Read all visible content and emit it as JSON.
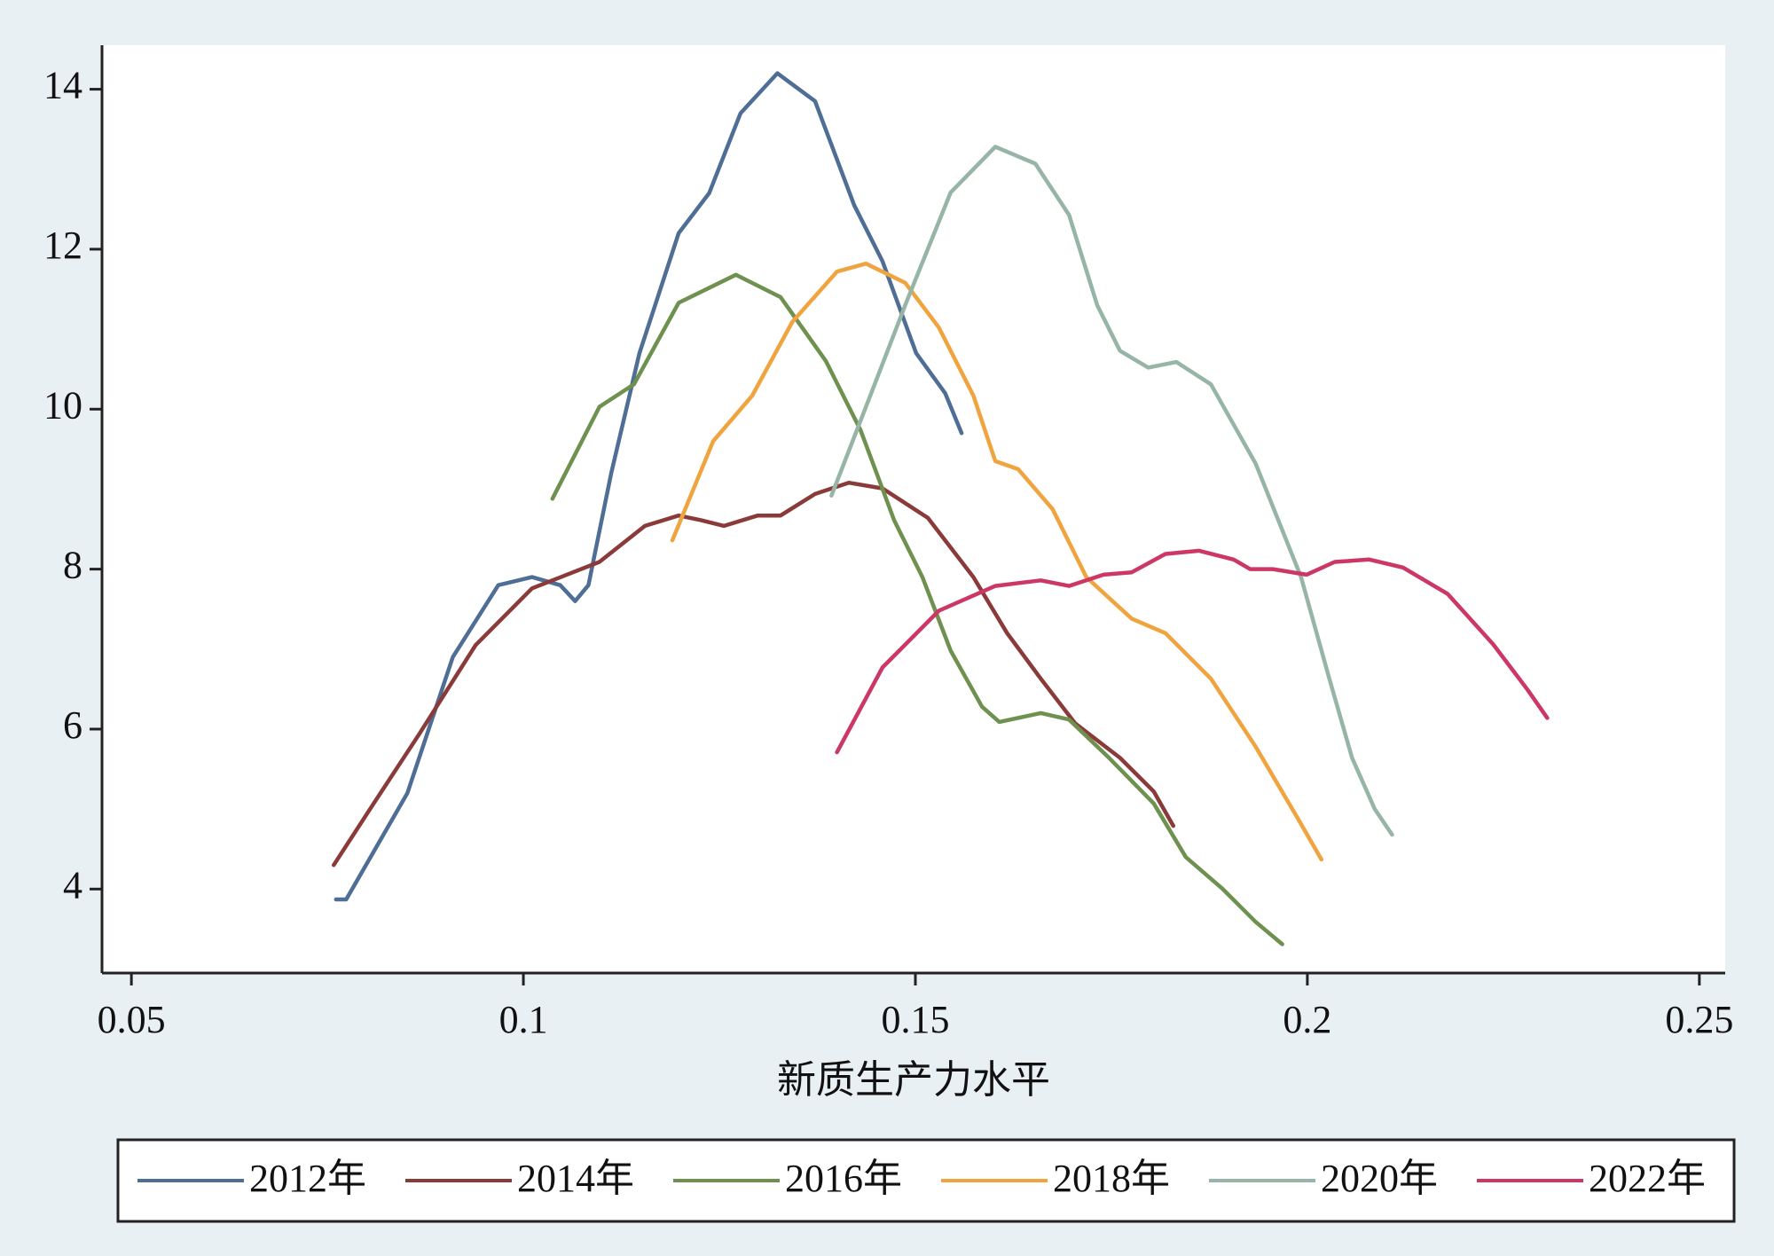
{
  "chart_data": {
    "type": "line",
    "xlabel": "新质生产力水平",
    "xlim": [
      0.04625,
      0.2533
    ],
    "xticks": [
      0.05,
      0.1,
      0.15,
      0.2,
      0.25
    ],
    "ylim": [
      2.95,
      14.55
    ],
    "yticks": [
      4,
      6,
      8,
      10,
      12,
      14
    ],
    "grid": false,
    "legend": "bottom",
    "series": [
      {
        "name": "2012年",
        "color": "#4f6e96",
        "x": [
          0.0761,
          0.0774,
          0.0852,
          0.091,
          0.0968,
          0.1011,
          0.1047,
          0.1066,
          0.1083,
          0.1112,
          0.1148,
          0.1198,
          0.1237,
          0.1277,
          0.1324,
          0.1372,
          0.1422,
          0.1458,
          0.1501,
          0.1538,
          0.1559
        ],
        "values": [
          3.87,
          3.87,
          5.2,
          6.9,
          7.8,
          7.9,
          7.8,
          7.6,
          7.8,
          9.2,
          10.7,
          12.2,
          12.7,
          13.7,
          14.2,
          13.85,
          12.55,
          11.85,
          10.7,
          10.2,
          9.7
        ]
      },
      {
        "name": "2014年",
        "color": "#8b3a3a",
        "x": [
          0.0758,
          0.0809,
          0.0866,
          0.0939,
          0.1011,
          0.1097,
          0.1155,
          0.1198,
          0.1227,
          0.1256,
          0.1299,
          0.1328,
          0.1372,
          0.1415,
          0.1458,
          0.1516,
          0.1574,
          0.1617,
          0.166,
          0.1704,
          0.1761,
          0.1804,
          0.1829
        ],
        "values": [
          4.3,
          5.07,
          5.92,
          7.05,
          7.76,
          8.09,
          8.54,
          8.67,
          8.61,
          8.54,
          8.67,
          8.67,
          8.94,
          9.08,
          9.01,
          8.64,
          7.9,
          7.2,
          6.63,
          6.07,
          5.64,
          5.22,
          4.79
        ]
      },
      {
        "name": "2016年",
        "color": "#6e9150",
        "x": [
          0.1037,
          0.1097,
          0.1141,
          0.1198,
          0.1271,
          0.1328,
          0.1386,
          0.143,
          0.1473,
          0.1509,
          0.1545,
          0.1585,
          0.1607,
          0.166,
          0.1696,
          0.1747,
          0.1804,
          0.1845,
          0.1891,
          0.1934,
          0.1968
        ],
        "values": [
          8.88,
          10.03,
          10.31,
          11.33,
          11.68,
          11.4,
          10.6,
          9.74,
          8.61,
          7.9,
          6.98,
          6.28,
          6.09,
          6.2,
          6.12,
          5.64,
          5.07,
          4.4,
          4.01,
          3.59,
          3.31
        ]
      },
      {
        "name": "2018年",
        "color": "#f0a440",
        "x": [
          0.119,
          0.1242,
          0.1292,
          0.1343,
          0.14,
          0.1437,
          0.1487,
          0.153,
          0.1574,
          0.1602,
          0.1631,
          0.1675,
          0.1718,
          0.1776,
          0.1819,
          0.1877,
          0.1934,
          0.1985,
          0.2018
        ],
        "values": [
          8.36,
          9.6,
          10.17,
          11.09,
          11.72,
          11.82,
          11.58,
          11.02,
          10.17,
          9.35,
          9.25,
          8.75,
          7.9,
          7.38,
          7.2,
          6.63,
          5.78,
          4.93,
          4.37
        ]
      },
      {
        "name": "2020年",
        "color": "#97b5a6",
        "x": [
          0.1393,
          0.1437,
          0.1487,
          0.1545,
          0.1602,
          0.1653,
          0.1696,
          0.1732,
          0.1761,
          0.1797,
          0.1833,
          0.1877,
          0.1934,
          0.1992,
          0.2028,
          0.2057,
          0.2086,
          0.2108
        ],
        "values": [
          8.92,
          10.03,
          11.3,
          12.71,
          13.28,
          13.07,
          12.43,
          11.3,
          10.73,
          10.52,
          10.59,
          10.31,
          9.32,
          7.9,
          6.63,
          5.64,
          5.0,
          4.68
        ]
      },
      {
        "name": "2022年",
        "color": "#cc3766",
        "x": [
          0.14,
          0.1458,
          0.153,
          0.1602,
          0.166,
          0.1696,
          0.174,
          0.1776,
          0.1819,
          0.1862,
          0.1906,
          0.1927,
          0.1956,
          0.1999,
          0.2035,
          0.2079,
          0.2122,
          0.2179,
          0.2237,
          0.2281,
          0.2306
        ],
        "values": [
          5.71,
          6.77,
          7.48,
          7.79,
          7.86,
          7.79,
          7.93,
          7.96,
          8.19,
          8.23,
          8.12,
          8.0,
          8.0,
          7.93,
          8.09,
          8.12,
          8.02,
          7.69,
          7.06,
          6.49,
          6.14
        ]
      }
    ]
  }
}
